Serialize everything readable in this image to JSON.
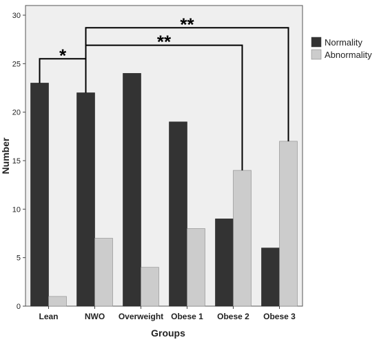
{
  "chart_data": {
    "type": "bar",
    "xlabel": "Groups",
    "ylabel": "Number",
    "ylim": [
      0,
      30
    ],
    "yticks": [
      "0",
      "5",
      "10",
      "15",
      "20",
      "25",
      "30"
    ],
    "categories": [
      "Lean",
      "NWO",
      "Overweight",
      "Obese 1",
      "Obese 2",
      "Obese 3"
    ],
    "series": [
      {
        "name": "Normality",
        "color": "#333333",
        "values": [
          23,
          22,
          24,
          19,
          9,
          6
        ]
      },
      {
        "name": "Abnormality",
        "color": "#cccccc",
        "values": [
          1,
          7,
          4,
          8,
          14,
          17
        ]
      }
    ],
    "legend": "top-right",
    "grid": false,
    "plot_background": "#efefef",
    "annotations": [
      {
        "label": "*",
        "from": "Lean",
        "to": "NWO"
      },
      {
        "label": "**",
        "from": "NWO",
        "to": "Obese 2"
      },
      {
        "label": "**",
        "from": "NWO",
        "to": "Obese 3"
      }
    ]
  }
}
